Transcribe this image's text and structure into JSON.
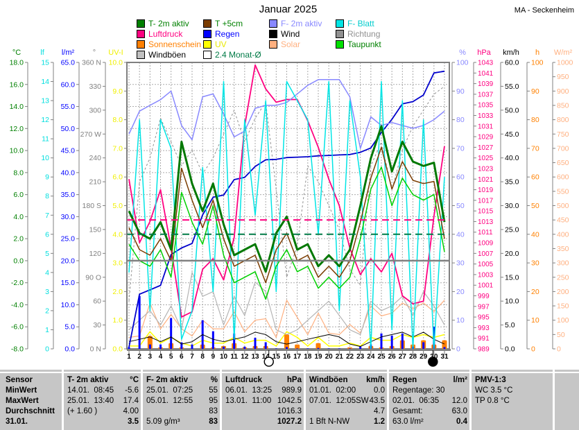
{
  "header": {
    "title": "Januar 2025",
    "station": "MA - Seckenheim"
  },
  "legend": {
    "items": [
      {
        "label": "T- 2m aktiv",
        "swatch": "#008000",
        "text": "#008000"
      },
      {
        "label": "T +5cm",
        "swatch": "#7a3c00",
        "text": "#008000"
      },
      {
        "label": "F- 2m aktiv",
        "swatch": "#8888ff",
        "text": "#8888ff"
      },
      {
        "label": "F- Blatt",
        "swatch": "#00e5e5",
        "text": "#00cccc"
      },
      {
        "label": "Luftdruck",
        "swatch": "#ff0080",
        "text": "#ff0080"
      },
      {
        "label": "Regen",
        "swatch": "#0000ff",
        "text": "#0000ff"
      },
      {
        "label": "Wind",
        "swatch": "#000000",
        "text": "#000000"
      },
      {
        "label": "Richtung",
        "swatch": "#909090",
        "text": "#909090"
      },
      {
        "label": "Sonnenschein",
        "swatch": "#ff8000",
        "text": "#ff8000"
      },
      {
        "label": "UV",
        "swatch": "#ffff00",
        "text": "#e8e800"
      },
      {
        "label": "Solar",
        "swatch": "#ffb080",
        "text": "#ffb080"
      },
      {
        "label": "Taupunkt",
        "swatch": "#00e000",
        "text": "#008000"
      },
      {
        "label": "Windböen",
        "swatch": "#c0c0c0",
        "text": "#000000"
      },
      {
        "label": "2.4 Monat-Ø",
        "swatch": "#ffffff",
        "text": "#007a46"
      }
    ]
  },
  "chart_data": {
    "type": "line",
    "title": "Januar 2025",
    "days": [
      1,
      2,
      3,
      4,
      5,
      6,
      7,
      8,
      9,
      10,
      11,
      12,
      13,
      14,
      15,
      16,
      17,
      18,
      19,
      20,
      21,
      22,
      23,
      24,
      25,
      26,
      27,
      28,
      29,
      30,
      31
    ],
    "axes": {
      "left": [
        {
          "id": "degC",
          "title": "°C",
          "color": "#008000",
          "min": -8,
          "max": 18,
          "step": 2,
          "decimals": 1
        },
        {
          "id": "lf",
          "title": "lf",
          "color": "#00dede",
          "min": 0,
          "max": 15,
          "step": 1,
          "decimals": 0
        },
        {
          "id": "lm2",
          "title": "l/m²",
          "color": "#0000ff",
          "min": 0,
          "max": 65,
          "step": 5,
          "decimals": 1
        },
        {
          "id": "deg",
          "title": "°",
          "color": "#808080",
          "min": 0,
          "max": 360,
          "step": 30,
          "decimals": 0,
          "labels": [
            "0 N",
            "30",
            "60",
            "90 O",
            "120",
            "150",
            "180 S",
            "210",
            "240",
            "270 W",
            "300",
            "330",
            "360 N"
          ]
        },
        {
          "id": "uv",
          "title": "UV-I",
          "color": "#f0f000",
          "min": 0,
          "max": 10,
          "step": 1,
          "decimals": 1
        }
      ],
      "right": [
        {
          "id": "pct",
          "title": "%",
          "color": "#8888ff",
          "min": 0,
          "max": 100,
          "step": 10,
          "decimals": 0
        },
        {
          "id": "hpa",
          "title": "hPa",
          "color": "#ff0080",
          "min": 989,
          "max": 1043,
          "step": 2,
          "decimals": 0
        },
        {
          "id": "kmh",
          "title": "km/h",
          "color": "#000000",
          "min": 0,
          "max": 60,
          "step": 5,
          "decimals": 1
        },
        {
          "id": "h",
          "title": "h",
          "color": "#ff8000",
          "min": 0,
          "max": 100,
          "step": 10,
          "decimals": 0
        },
        {
          "id": "wm2",
          "title": "W/m²",
          "color": "#ffb080",
          "min": 0,
          "max": 1000,
          "step": 50,
          "decimals": 0
        }
      ]
    },
    "series": [
      {
        "name": "Richtung",
        "axis": "deg",
        "color": "#909090",
        "width": 1,
        "style": "dashed",
        "values": [
          60,
          210,
          240,
          290,
          260,
          230,
          250,
          220,
          240,
          270,
          300,
          260,
          290,
          310,
          200,
          90,
          130,
          230,
          210,
          180,
          150,
          100,
          80,
          230,
          260,
          200,
          250,
          280,
          300,
          320,
          330
        ]
      },
      {
        "name": "Solar",
        "axis": "wm2",
        "color": "#ffb080",
        "width": 1.2,
        "values": [
          40,
          45,
          160,
          70,
          120,
          70,
          45,
          100,
          70,
          70,
          130,
          60,
          100,
          105,
          40,
          170,
          110,
          50,
          125,
          55,
          50,
          85,
          55,
          150,
          115,
          125,
          160,
          140,
          160,
          130,
          170
        ]
      },
      {
        "name": "UV",
        "axis": "uv",
        "color": "#ffff00",
        "width": 1.5,
        "values": [
          0.1,
          0.1,
          0.6,
          0.2,
          0.4,
          0.2,
          0.1,
          0.3,
          0.2,
          0.2,
          0.4,
          0.2,
          0.3,
          0.3,
          0.1,
          0.6,
          0.4,
          0.1,
          0.4,
          0.1,
          0.1,
          0.2,
          0.1,
          0.4,
          0.3,
          0.3,
          0.5,
          0.4,
          0.5,
          0.4,
          0.5
        ]
      },
      {
        "name": "Windböen",
        "axis": "kmh",
        "color": "#b4b4b4",
        "width": 1.2,
        "values": [
          4,
          6,
          8,
          5,
          9,
          4,
          16,
          11,
          12,
          5,
          11,
          7,
          14,
          12,
          4,
          3,
          4,
          6,
          8,
          10,
          7,
          4,
          3,
          10,
          8,
          9,
          11,
          7,
          12,
          9,
          5
        ]
      },
      {
        "name": "Sonnenschein",
        "axis": "h",
        "color": "#ff8000",
        "type": "bar",
        "barw": 7,
        "values": [
          0,
          0,
          4.5,
          0.5,
          2,
          0.5,
          0,
          1.5,
          0.5,
          1,
          2,
          0.5,
          1,
          1,
          0,
          5,
          1.5,
          0,
          2,
          0,
          0,
          0.5,
          0,
          1,
          0.5,
          1,
          3,
          1.5,
          3,
          1.5,
          3
        ]
      },
      {
        "name": "Regen",
        "axis": "lm2",
        "color": "#0000ff",
        "type": "bar",
        "barw": 3,
        "values": [
          0.4,
          12,
          1,
          1,
          7,
          1.5,
          1,
          6.5,
          4,
          0.5,
          3.5,
          0.5,
          2.5,
          1.5,
          0.1,
          0.4,
          0.1,
          0.1,
          0.2,
          0.1,
          0.1,
          0.1,
          0.5,
          1,
          3.5,
          3,
          3.5,
          0.5,
          1.5,
          5,
          0.4
        ]
      },
      {
        "name": "Wind",
        "axis": "kmh",
        "color": "#000000",
        "width": 1,
        "values": [
          1.5,
          2,
          2.5,
          1.5,
          2.5,
          1,
          1.5,
          3,
          2,
          1.5,
          2,
          2.5,
          3.5,
          3,
          1.5,
          1,
          1.5,
          2,
          2.5,
          3,
          2.5,
          1,
          0.5,
          1.5,
          2.5,
          3,
          3.5,
          2.5,
          3.5,
          2,
          1
        ]
      },
      {
        "name": "Regen-Summe",
        "axis": "lm2",
        "color": "#0000cc",
        "width": 1.8,
        "values": [
          0.4,
          12.4,
          13.4,
          14.4,
          21.4,
          22.9,
          23.9,
          30.4,
          34.4,
          34.9,
          38.4,
          38.9,
          41.4,
          42.9,
          43.0,
          43.4,
          43.5,
          43.6,
          43.8,
          43.9,
          44.0,
          44.1,
          44.6,
          45.6,
          49.1,
          52.1,
          55.6,
          56.1,
          57.6,
          62.6,
          63.0
        ]
      },
      {
        "name": "Luftdruck",
        "axis": "hpa",
        "color": "#ff0080",
        "width": 1.8,
        "values": [
          1021,
          1009,
          1013,
          1019,
          1008,
          995,
          996,
          1004,
          1006,
          1002,
          1010,
          1031,
          1042.5,
          1038,
          1035.5,
          1036,
          1036,
          1032,
          1027,
          1021,
          1016,
          1008,
          1003,
          1006,
          1003.5,
          1007,
          999,
          997.5,
          998,
          1014,
          1027.2
        ]
      },
      {
        "name": "F- 2m aktiv",
        "axis": "pct",
        "color": "#8888ff",
        "width": 1.5,
        "values": [
          75,
          83,
          85,
          87,
          90,
          78,
          73,
          88,
          89,
          82,
          74,
          76,
          84,
          85,
          85,
          86,
          89,
          92,
          94,
          94,
          94,
          88,
          70,
          81,
          78,
          79,
          78,
          77,
          78,
          80,
          83
        ]
      },
      {
        "name": "F- Blatt",
        "axis": "lf",
        "color": "#00e5e5",
        "width": 1.5,
        "values": [
          4,
          12,
          2,
          12,
          10.5,
          0.5,
          2,
          9.5,
          3,
          14,
          0.5,
          12,
          7,
          13,
          3,
          14,
          13,
          12,
          6,
          14,
          2,
          13,
          9,
          0,
          14,
          1,
          13,
          0,
          12,
          0,
          9
        ]
      },
      {
        "name": "Taupunkt",
        "axis": "degC",
        "color": "#00d000",
        "width": 1.5,
        "values": [
          1.5,
          0,
          -0.5,
          1,
          -1.5,
          6.2,
          3.5,
          1.5,
          5,
          0.5,
          -2,
          -1.5,
          -1,
          -3.5,
          -0.5,
          1,
          -1,
          -0.5,
          -2.5,
          -1.5,
          -2.5,
          -1.5,
          2,
          6.5,
          8.5,
          5,
          7.5,
          6,
          5.5,
          6,
          0.8
        ]
      },
      {
        "name": "T +5cm",
        "axis": "degC",
        "color": "#7a3c00",
        "width": 1.5,
        "values": [
          3,
          1,
          0.5,
          2,
          0,
          8.4,
          5.5,
          3,
          5.5,
          2,
          -0.5,
          0,
          0.5,
          -2,
          1,
          2.5,
          0,
          0.5,
          -1.5,
          -0.5,
          -1.5,
          0,
          3.5,
          7.5,
          10.3,
          6.5,
          9,
          7.3,
          7,
          7.2,
          2
        ]
      },
      {
        "name": "T- 2m aktiv",
        "axis": "degC",
        "color": "#007800",
        "width": 3,
        "values": [
          4.5,
          2.5,
          2,
          3.5,
          1,
          10.8,
          7,
          4.5,
          7,
          3.3,
          0.5,
          1,
          1.5,
          -1,
          2.5,
          4,
          1,
          1.5,
          -0.5,
          0.5,
          -0.5,
          1,
          5,
          9.3,
          12.2,
          8.1,
          10.8,
          9,
          8.6,
          8.9,
          3.5
        ]
      }
    ],
    "reference_lines": [
      {
        "name": "0 °C",
        "axis": "degC",
        "value": 0,
        "color": "#808080",
        "style": "solid",
        "width": 2.5
      },
      {
        "name": "2.4 Monat-Ø",
        "axis": "degC",
        "value": 2.4,
        "color": "#007a46",
        "style": "dashed",
        "width": 2
      },
      {
        "name": "Normaldruck",
        "axis": "hpa",
        "value": 1013.3,
        "color": "#ff0080",
        "style": "dashed",
        "width": 2
      }
    ],
    "moon_phases": [
      {
        "day": 14.3,
        "phase": "full"
      },
      {
        "day": 29.9,
        "phase": "new"
      }
    ]
  },
  "table": {
    "row_headers": [
      "Sensor",
      "MinWert",
      "MaxWert",
      "Durchschnitt",
      "31.01."
    ],
    "columns": [
      {
        "name": "T- 2m aktiv",
        "unit": "°C",
        "cells": [
          [
            "14.01.  08:45",
            "-5.6"
          ],
          [
            "25.01.  13:40",
            "17.4"
          ],
          [
            "(+ 1.60 )",
            "4.00"
          ],
          [
            "",
            "3.5"
          ]
        ]
      },
      {
        "name": "F- 2m aktiv",
        "unit": "%",
        "cells": [
          [
            "25.01.  07:25",
            "55"
          ],
          [
            "05.01.  12:55",
            "95"
          ],
          [
            "",
            "83"
          ],
          [
            "5.09 g/m³",
            "83"
          ]
        ]
      },
      {
        "name": "Luftdruck",
        "unit": "hPa",
        "cells": [
          [
            "06.01.  13:25",
            "989.9"
          ],
          [
            "13.01.  11:00",
            "1042.5"
          ],
          [
            "",
            "1016.3"
          ],
          [
            "",
            "1027.2"
          ]
        ]
      },
      {
        "name": "Windböen",
        "unit": "km/h",
        "cells": [
          [
            "01.01.  02:00",
            "0.0"
          ],
          [
            "07.01.  12:05SW",
            "43.5"
          ],
          [
            "",
            "4.7"
          ],
          [
            "1 Bft N-NW",
            "1.2"
          ]
        ]
      },
      {
        "name": "Regen",
        "unit": "l/m²",
        "cells": [
          [
            "Regentage: 30",
            ""
          ],
          [
            "02.01.  06:35",
            "12.0"
          ],
          [
            "Gesamt:",
            "63.0"
          ],
          [
            "63.0 l/m²",
            "0.4"
          ]
        ]
      }
    ],
    "pmv": {
      "title": "PMV-1:3",
      "line1": "WC 3.5 °C",
      "line2": "TP 0.8 °C"
    }
  }
}
